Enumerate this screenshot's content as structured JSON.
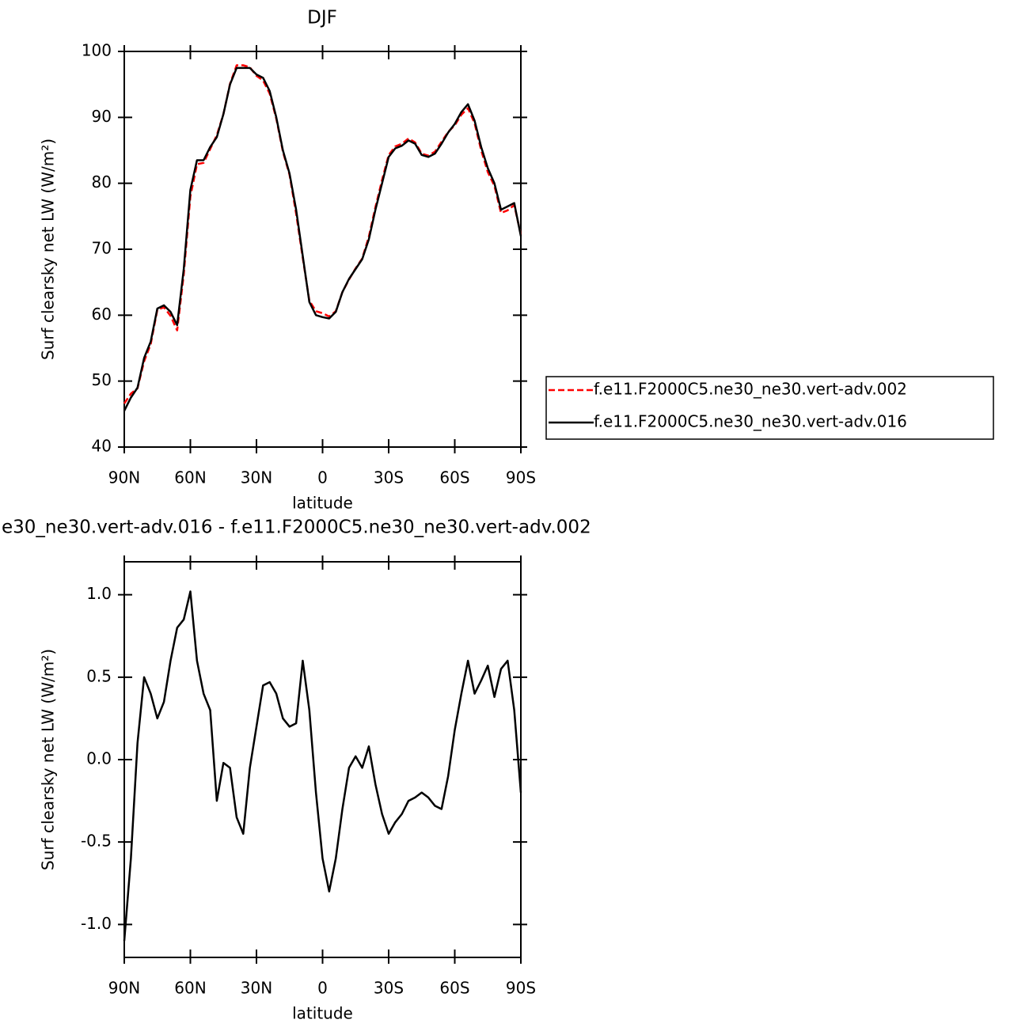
{
  "chart_data": [
    {
      "type": "line",
      "title": "DJF",
      "x_label": "latitude",
      "y_label": "Surf clearsky net LW (W/m²)",
      "x": [
        90,
        87,
        84,
        81,
        78,
        75,
        72,
        69,
        66,
        63,
        60,
        57,
        54,
        51,
        48,
        45,
        42,
        39,
        36,
        33,
        30,
        27,
        24,
        21,
        18,
        15,
        12,
        9,
        6,
        3,
        0,
        -3,
        -6,
        -9,
        -12,
        -15,
        -18,
        -21,
        -24,
        -27,
        -30,
        -33,
        -36,
        -39,
        -42,
        -45,
        -48,
        -51,
        -54,
        -57,
        -60,
        -63,
        -66,
        -69,
        -72,
        -75,
        -78,
        -81,
        -84,
        -87,
        -90
      ],
      "series": [
        {
          "name": "f.e11.F2000C5.ne30_ne30.vert-adv.002",
          "color": "#ff0000",
          "dash": "dashed",
          "values": [
            46.6,
            48.1,
            48.9,
            53,
            55.6,
            60.8,
            61.2,
            59.9,
            57.7,
            66.2,
            78,
            82.9,
            83.1,
            85.2,
            87.3,
            90.5,
            95.1,
            97.9,
            97.9,
            97.6,
            96.3,
            95.6,
            93.6,
            89.8,
            84.8,
            81.3,
            75.4,
            68.7,
            62.2,
            60.6,
            60.3,
            59.8,
            60.6,
            63.5,
            65.4,
            67.1,
            68.6,
            71.9,
            76.4,
            80.5,
            84.3,
            85.6,
            86,
            86.8,
            86.2,
            84.5,
            84.2,
            84.8,
            86.3,
            87.8,
            88.8,
            90.4,
            91.4,
            89.1,
            85,
            81.7,
            79.6,
            75.5,
            75.9,
            76.7,
            72.2
          ]
        },
        {
          "name": "f.e11.F2000C5.ne30_ne30.vert-adv.016",
          "color": "#000000",
          "dash": "solid",
          "values": [
            45.5,
            47.5,
            49,
            53.5,
            56,
            61,
            61.5,
            60.5,
            58.5,
            67,
            79,
            83.5,
            83.5,
            85.5,
            87,
            90.5,
            95,
            97.5,
            97.5,
            97.5,
            96.5,
            96,
            94,
            90,
            85,
            81.5,
            76,
            69,
            62,
            60,
            59.7,
            59.5,
            60.5,
            63.5,
            65.5,
            67,
            68.5,
            71.5,
            76,
            80,
            84,
            85.3,
            85.7,
            86.5,
            86,
            84.3,
            84,
            84.5,
            86,
            87.7,
            89,
            90.8,
            92,
            89.5,
            85.5,
            82.3,
            80,
            76,
            76.5,
            77,
            72
          ]
        }
      ],
      "xlim": [
        90,
        -90
      ],
      "xticks": [
        {
          "value": 90,
          "label": "90N"
        },
        {
          "value": 60,
          "label": "60N"
        },
        {
          "value": 30,
          "label": "30N"
        },
        0,
        {
          "value": -30,
          "label": "30S"
        },
        {
          "value": -60,
          "label": "60S"
        },
        {
          "value": -90,
          "label": "90S"
        }
      ],
      "ylim": [
        40,
        100
      ],
      "yticks": [
        40,
        50,
        60,
        70,
        80,
        90,
        100
      ],
      "legend": "right"
    },
    {
      "type": "line",
      "title": "e30_ne30.vert-adv.016 - f.e11.F2000C5.ne30_ne30.vert-adv.002",
      "x_label": "latitude",
      "y_label": "Surf clearsky net LW (W/m²)",
      "x": [
        90,
        87,
        84,
        81,
        78,
        75,
        72,
        69,
        66,
        63,
        60,
        57,
        54,
        51,
        48,
        45,
        42,
        39,
        36,
        33,
        30,
        27,
        24,
        21,
        18,
        15,
        12,
        9,
        6,
        3,
        0,
        -3,
        -6,
        -9,
        -12,
        -15,
        -18,
        -21,
        -24,
        -27,
        -30,
        -33,
        -36,
        -39,
        -42,
        -45,
        -48,
        -51,
        -54,
        -57,
        -60,
        -63,
        -66,
        -69,
        -72,
        -75,
        -78,
        -81,
        -84,
        -87,
        -90
      ],
      "series": [
        {
          "color": "#000000",
          "dash": "solid",
          "values": [
            -1.1,
            -0.6,
            0.1,
            0.5,
            0.4,
            0.25,
            0.35,
            0.6,
            0.8,
            0.85,
            1.02,
            0.6,
            0.4,
            0.3,
            -0.25,
            -0.02,
            -0.05,
            -0.35,
            -0.45,
            -0.05,
            0.2,
            0.45,
            0.47,
            0.4,
            0.25,
            0.2,
            0.22,
            0.6,
            0.3,
            -0.2,
            -0.6,
            -0.8,
            -0.6,
            -0.3,
            -0.05,
            0.02,
            -0.05,
            0.08,
            -0.15,
            -0.33,
            -0.45,
            -0.38,
            -0.33,
            -0.25,
            -0.23,
            -0.2,
            -0.23,
            -0.28,
            -0.3,
            -0.1,
            0.18,
            0.4,
            0.6,
            0.4,
            0.48,
            0.57,
            0.38,
            0.55,
            0.6,
            0.3,
            -0.2
          ]
        }
      ],
      "xlim": [
        90,
        -90
      ],
      "xticks": [
        {
          "value": 90,
          "label": "90N"
        },
        {
          "value": 60,
          "label": "60N"
        },
        {
          "value": 30,
          "label": "30N"
        },
        0,
        {
          "value": -30,
          "label": "30S"
        },
        {
          "value": -60,
          "label": "60S"
        },
        {
          "value": -90,
          "label": "90S"
        }
      ],
      "ylim": [
        -1.2,
        1.2
      ],
      "yticks": [
        {
          "value": -1,
          "label": "-1.0"
        },
        -0.5,
        {
          "value": 0,
          "label": "0.0"
        },
        0.5,
        {
          "value": 1,
          "label": "1.0"
        }
      ]
    }
  ]
}
